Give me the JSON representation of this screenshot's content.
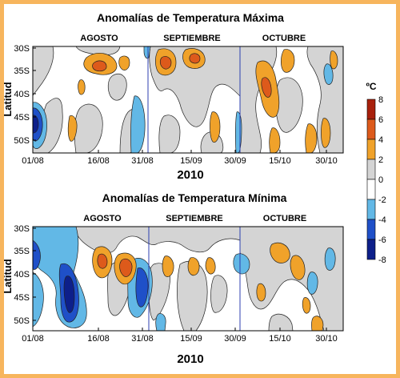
{
  "colors": {
    "frame": "#f7b55d",
    "levels": [
      {
        "min": -8,
        "max": -6,
        "color": "#0d1f8a"
      },
      {
        "min": -6,
        "max": -4,
        "color": "#1f50c8"
      },
      {
        "min": -4,
        "max": -2,
        "color": "#62b8e6"
      },
      {
        "min": -2,
        "max": 0,
        "color": "#ffffff"
      },
      {
        "min": 0,
        "max": 2,
        "color": "#d4d4d4"
      },
      {
        "min": 2,
        "max": 4,
        "color": "#f0a22a"
      },
      {
        "min": 4,
        "max": 6,
        "color": "#dd5a1b"
      },
      {
        "min": 6,
        "max": 8,
        "color": "#a8200c"
      }
    ],
    "month_line": "#2c3fb0",
    "contour": "#222222"
  },
  "chart_data": [
    {
      "type": "heatmap",
      "title": "Anomalías de Temperatura Máxima",
      "xlabel": "2010",
      "ylabel": "Latitud",
      "months": [
        "AGOSTO",
        "SEPTIEMBRE",
        "OCTUBRE"
      ],
      "x_ticks": [
        "01/08",
        "16/08",
        "31/08",
        "15/09",
        "30/09",
        "15/10",
        "30/10"
      ],
      "y_ticks": [
        "30S",
        "35S",
        "40S",
        "45S",
        "50S"
      ],
      "xlim": [
        "2010-08-01",
        "2010-11-03"
      ],
      "ylim": [
        53,
        28
      ],
      "month_boundaries": [
        "2010-09-01",
        "2010-10-01"
      ],
      "anomalies": [
        {
          "day": "2010-08-02",
          "lat": 46,
          "value": -6.5
        },
        {
          "day": "2010-08-23",
          "lat": 47,
          "value": -3
        },
        {
          "day": "2010-09-01",
          "lat": 33,
          "value": 5
        },
        {
          "day": "2010-09-07",
          "lat": 33,
          "value": 4.5
        },
        {
          "day": "2010-09-20",
          "lat": 33,
          "value": 4.5
        },
        {
          "day": "2010-10-08",
          "lat": 39,
          "value": 5
        }
      ]
    },
    {
      "type": "heatmap",
      "title": "Anomalías de Temperatura Mínima",
      "xlabel": "2010",
      "ylabel": "Latitud",
      "months": [
        "AGOSTO",
        "SEPTIEMBRE",
        "OCTUBRE"
      ],
      "x_ticks": [
        "01/08",
        "16/08",
        "31/08",
        "15/09",
        "30/09",
        "15/10",
        "30/10"
      ],
      "y_ticks": [
        "30S",
        "35S",
        "40S",
        "45S",
        "50S"
      ],
      "xlim": [
        "2010-08-01",
        "2010-11-03"
      ],
      "ylim": [
        53,
        28
      ],
      "month_boundaries": [
        "2010-09-01",
        "2010-10-01"
      ],
      "anomalies": [
        {
          "day": "2010-08-10",
          "lat": 43,
          "value": -7
        },
        {
          "day": "2010-08-20",
          "lat": 38,
          "value": 4.5
        },
        {
          "day": "2010-08-29",
          "lat": 42,
          "value": -6
        },
        {
          "day": "2010-10-13",
          "lat": 39,
          "value": 2.8
        }
      ]
    }
  ],
  "colorbar": {
    "unit": "ºC",
    "ticks": [
      "8",
      "6",
      "4",
      "2",
      "0",
      "-2",
      "-4",
      "-6",
      "-8"
    ]
  }
}
